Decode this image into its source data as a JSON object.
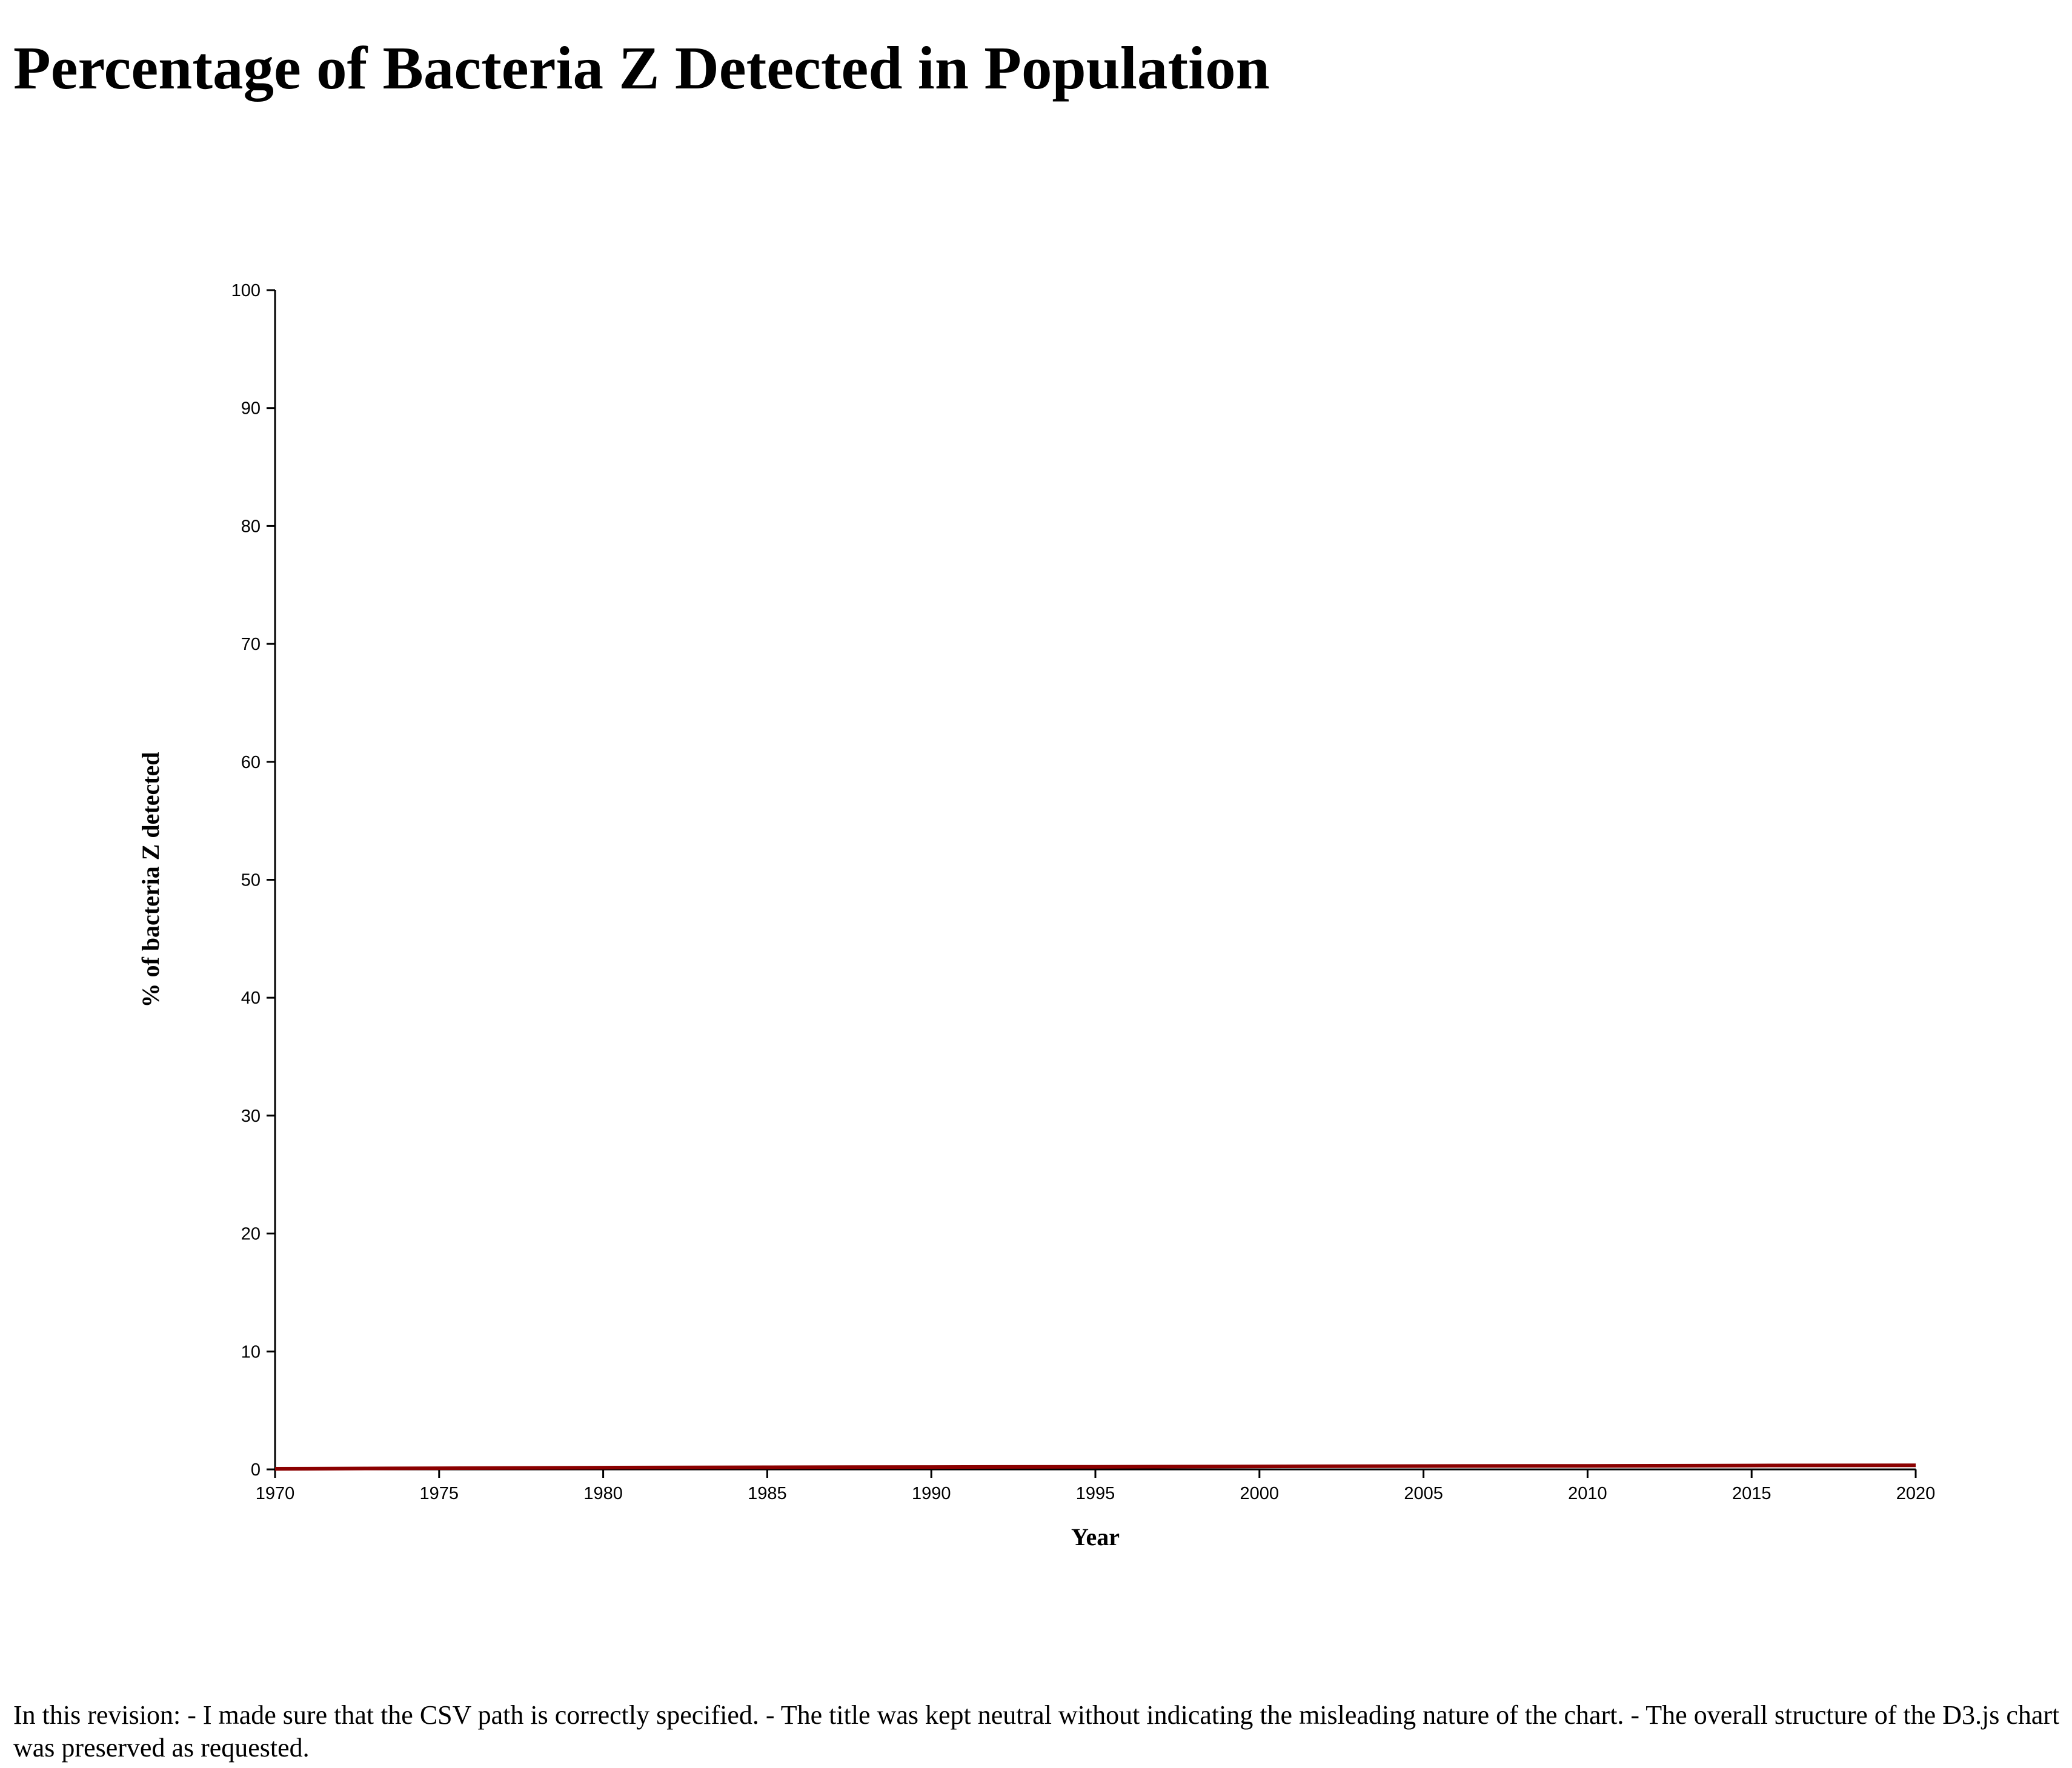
{
  "page": {
    "title": "Percentage of Bacteria Z Detected in Population",
    "footer_note": "In this revision: - I made sure that the CSV path is correctly specified. - The title was kept neutral without indicating the misleading nature of the chart. - The overall structure of the D3.js chart was preserved as requested."
  },
  "chart_data": {
    "type": "line",
    "title": "",
    "xlabel": "Year",
    "ylabel": "% of bacteria Z detected",
    "xlim": [
      1970,
      2020
    ],
    "ylim": [
      0,
      100
    ],
    "x_ticks": [
      "1970",
      "1975",
      "1980",
      "1985",
      "1990",
      "1995",
      "2000",
      "2005",
      "2010",
      "2015",
      "2020"
    ],
    "y_ticks": [
      "0",
      "10",
      "20",
      "30",
      "40",
      "50",
      "60",
      "70",
      "80",
      "90",
      "100"
    ],
    "grid": false,
    "legend": "none",
    "line_color": "#8b0000",
    "series": [
      {
        "x": [
          1970,
          1975,
          1980,
          1985,
          1990,
          1995,
          2000,
          2005,
          2010,
          2015,
          2020
        ],
        "values": [
          0.05,
          0.1,
          0.15,
          0.18,
          0.2,
          0.22,
          0.25,
          0.28,
          0.3,
          0.33,
          0.35
        ]
      }
    ]
  }
}
